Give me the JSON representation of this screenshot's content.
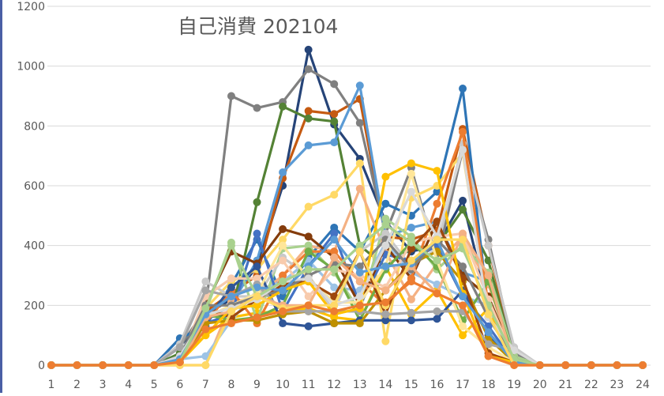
{
  "chart_data": {
    "type": "line",
    "title": "自己消費  202104",
    "xlabel": "",
    "ylabel": "",
    "x": [
      1,
      2,
      3,
      4,
      5,
      6,
      7,
      8,
      9,
      10,
      11,
      12,
      13,
      14,
      15,
      16,
      17,
      18,
      19,
      20,
      21,
      22,
      23,
      24
    ],
    "ylim": [
      0,
      1200
    ],
    "yticks": [
      0,
      200,
      400,
      600,
      800,
      1000,
      1200
    ],
    "grid": true,
    "legend": "none",
    "series": [
      {
        "color": "#264478",
        "values": [
          0,
          0,
          0,
          0,
          0,
          60,
          170,
          220,
          330,
          600,
          1055,
          805,
          690,
          480,
          380,
          400,
          550,
          200,
          30,
          0,
          0,
          0,
          0,
          0
        ]
      },
      {
        "color": "#C55A11",
        "values": [
          0,
          0,
          0,
          0,
          0,
          30,
          180,
          240,
          300,
          625,
          850,
          840,
          890,
          430,
          420,
          450,
          790,
          400,
          20,
          0,
          0,
          0,
          0,
          0
        ]
      },
      {
        "color": "#808080",
        "values": [
          0,
          0,
          0,
          0,
          0,
          60,
          190,
          900,
          860,
          880,
          990,
          940,
          810,
          440,
          660,
          350,
          720,
          420,
          40,
          0,
          0,
          0,
          0,
          0
        ]
      },
      {
        "color": "#548235",
        "values": [
          0,
          0,
          0,
          0,
          0,
          40,
          160,
          170,
          545,
          865,
          825,
          815,
          400,
          330,
          390,
          400,
          520,
          350,
          20,
          0,
          0,
          0,
          0,
          0
        ]
      },
      {
        "color": "#5B9BD5",
        "values": [
          0,
          0,
          0,
          0,
          0,
          30,
          150,
          200,
          350,
          645,
          735,
          745,
          935,
          430,
          460,
          480,
          310,
          280,
          20,
          0,
          0,
          0,
          0,
          0
        ]
      },
      {
        "color": "#2E75B6",
        "values": [
          0,
          0,
          0,
          0,
          0,
          90,
          130,
          270,
          420,
          230,
          360,
          460,
          380,
          540,
          500,
          580,
          925,
          180,
          10,
          0,
          0,
          0,
          0,
          0
        ]
      },
      {
        "color": "#FFD966",
        "values": [
          0,
          0,
          0,
          0,
          0,
          10,
          190,
          280,
          320,
          420,
          530,
          570,
          675,
          80,
          560,
          600,
          710,
          180,
          10,
          0,
          0,
          0,
          0,
          0
        ]
      },
      {
        "color": "#F4B183",
        "values": [
          0,
          0,
          0,
          0,
          0,
          0,
          0,
          210,
          230,
          300,
          400,
          380,
          590,
          380,
          220,
          340,
          430,
          270,
          20,
          0,
          0,
          0,
          0,
          0
        ]
      },
      {
        "color": "#FFC000",
        "values": [
          0,
          0,
          0,
          0,
          0,
          20,
          100,
          160,
          175,
          180,
          190,
          160,
          150,
          330,
          170,
          250,
          100,
          190,
          10,
          0,
          0,
          0,
          0,
          0
        ]
      },
      {
        "color": "#9DC3E6",
        "values": [
          0,
          0,
          0,
          0,
          0,
          20,
          30,
          150,
          250,
          280,
          350,
          260,
          250,
          410,
          310,
          270,
          230,
          200,
          20,
          0,
          0,
          0,
          0,
          0
        ]
      },
      {
        "color": "#A9D18E",
        "values": [
          0,
          0,
          0,
          0,
          0,
          10,
          180,
          410,
          150,
          390,
          400,
          310,
          180,
          490,
          430,
          320,
          400,
          310,
          30,
          0,
          0,
          0,
          0,
          0
        ]
      },
      {
        "color": "#C9C9C9",
        "values": [
          0,
          0,
          0,
          0,
          0,
          70,
          280,
          230,
          230,
          360,
          300,
          180,
          380,
          440,
          330,
          390,
          740,
          400,
          60,
          0,
          0,
          0,
          0,
          0
        ]
      },
      {
        "color": "#4472C4",
        "values": [
          0,
          0,
          0,
          0,
          0,
          10,
          140,
          170,
          440,
          180,
          330,
          440,
          200,
          370,
          350,
          400,
          230,
          130,
          10,
          0,
          0,
          0,
          0,
          0
        ]
      },
      {
        "color": "#843C0C",
        "values": [
          0,
          0,
          0,
          0,
          0,
          20,
          200,
          380,
          340,
          455,
          430,
          360,
          200,
          400,
          290,
          480,
          300,
          230,
          20,
          0,
          0,
          0,
          0,
          0
        ]
      },
      {
        "color": "#ED7D31",
        "values": [
          0,
          0,
          0,
          0,
          0,
          20,
          140,
          250,
          140,
          300,
          380,
          380,
          280,
          200,
          290,
          540,
          780,
          200,
          20,
          0,
          0,
          0,
          0,
          0
        ]
      },
      {
        "color": "#70AD47",
        "values": [
          0,
          0,
          0,
          0,
          0,
          30,
          170,
          150,
          160,
          200,
          380,
          320,
          150,
          320,
          410,
          330,
          150,
          280,
          20,
          0,
          0,
          0,
          0,
          0
        ]
      },
      {
        "color": "#2F5597",
        "values": [
          0,
          0,
          0,
          0,
          0,
          30,
          150,
          260,
          330,
          140,
          130,
          140,
          150,
          150,
          150,
          155,
          250,
          100,
          10,
          0,
          0,
          0,
          0,
          0
        ]
      },
      {
        "color": "#BF9000",
        "values": [
          0,
          0,
          0,
          0,
          0,
          10,
          140,
          150,
          150,
          170,
          180,
          140,
          140,
          250,
          340,
          380,
          280,
          90,
          10,
          0,
          0,
          0,
          0,
          0
        ]
      },
      {
        "color": "#FFE699",
        "values": [
          0,
          0,
          0,
          0,
          0,
          20,
          160,
          200,
          240,
          400,
          290,
          210,
          210,
          330,
          640,
          350,
          130,
          60,
          10,
          0,
          0,
          0,
          0,
          0
        ]
      },
      {
        "color": "#F8CBAD",
        "values": [
          0,
          0,
          0,
          0,
          0,
          10,
          230,
          290,
          290,
          350,
          230,
          320,
          300,
          260,
          410,
          430,
          440,
          220,
          20,
          0,
          0,
          0,
          0,
          0
        ]
      },
      {
        "color": "#9E480E",
        "values": [
          0,
          0,
          0,
          0,
          0,
          20,
          190,
          160,
          220,
          270,
          280,
          230,
          380,
          170,
          390,
          480,
          290,
          40,
          10,
          0,
          0,
          0,
          0,
          0
        ]
      },
      {
        "color": "#7F7F7F",
        "values": [
          0,
          0,
          0,
          0,
          0,
          30,
          200,
          200,
          230,
          250,
          300,
          340,
          330,
          420,
          320,
          420,
          330,
          160,
          20,
          0,
          0,
          0,
          0,
          0
        ]
      },
      {
        "color": "#A5A5A5",
        "values": [
          0,
          0,
          0,
          0,
          0,
          60,
          250,
          230,
          270,
          180,
          180,
          180,
          180,
          170,
          175,
          180,
          180,
          70,
          50,
          0,
          0,
          0,
          0,
          0
        ]
      },
      {
        "color": "#FFC000",
        "values": [
          0,
          0,
          0,
          0,
          0,
          10,
          100,
          190,
          200,
          250,
          280,
          170,
          190,
          630,
          675,
          650,
          240,
          30,
          10,
          0,
          0,
          0,
          0,
          0
        ]
      },
      {
        "color": "#D9D9D9",
        "values": [
          0,
          0,
          0,
          0,
          0,
          30,
          170,
          190,
          220,
          280,
          290,
          200,
          230,
          400,
          580,
          430,
          720,
          160,
          50,
          0,
          0,
          0,
          0,
          0
        ]
      },
      {
        "color": "#F4B183",
        "values": [
          0,
          0,
          0,
          0,
          0,
          0,
          160,
          180,
          230,
          200,
          200,
          360,
          280,
          250,
          330,
          240,
          440,
          300,
          0,
          0,
          0,
          0,
          0,
          0
        ]
      },
      {
        "color": "#5B9BD5",
        "values": [
          0,
          0,
          0,
          0,
          0,
          20,
          170,
          230,
          260,
          250,
          330,
          420,
          310,
          330,
          340,
          420,
          230,
          110,
          10,
          0,
          0,
          0,
          0,
          0
        ]
      },
      {
        "color": "#A9D18E",
        "values": [
          0,
          0,
          0,
          0,
          0,
          10,
          190,
          400,
          230,
          280,
          320,
          320,
          400,
          470,
          410,
          350,
          390,
          200,
          20,
          0,
          0,
          0,
          0,
          0
        ]
      },
      {
        "color": "#FFD966",
        "values": [
          0,
          0,
          0,
          0,
          0,
          0,
          0,
          180,
          230,
          190,
          200,
          200,
          380,
          200,
          350,
          420,
          420,
          170,
          0,
          0,
          0,
          0,
          0,
          0
        ]
      },
      {
        "color": "#ED7D31",
        "values": [
          0,
          0,
          0,
          0,
          0,
          10,
          120,
          140,
          160,
          180,
          200,
          180,
          200,
          210,
          280,
          240,
          200,
          30,
          0,
          0,
          0,
          0,
          0,
          0
        ]
      }
    ]
  }
}
